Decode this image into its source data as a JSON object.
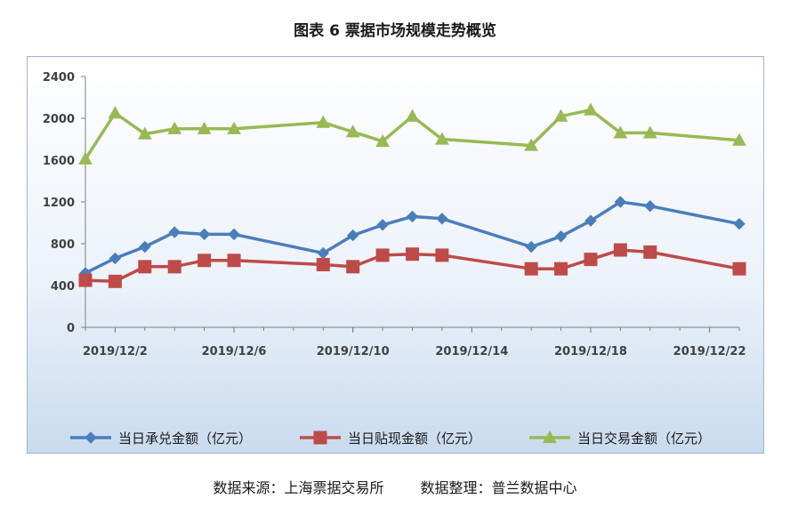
{
  "title": "图表 6 票据市场规模走势概览",
  "source_left": "数据来源：上海票据交易所",
  "source_right": "数据整理：普兰数据中心",
  "chart_data": {
    "type": "line",
    "title": "图表 6 票据市场规模走势概览",
    "x_tick_labels": [
      "2019/12/2",
      "2019/12/6",
      "2019/12/10",
      "2019/12/14",
      "2019/12/18",
      "2019/12/22"
    ],
    "x_tick_days": [
      2,
      6,
      10,
      14,
      18,
      22
    ],
    "x": [
      1,
      2,
      3,
      4,
      5,
      6,
      9,
      10,
      11,
      12,
      13,
      16,
      17,
      18,
      19,
      20,
      23
    ],
    "x_dates": [
      "2019/12/1",
      "2019/12/2",
      "2019/12/3",
      "2019/12/4",
      "2019/12/5",
      "2019/12/6",
      "2019/12/9",
      "2019/12/10",
      "2019/12/11",
      "2019/12/12",
      "2019/12/13",
      "2019/12/16",
      "2019/12/17",
      "2019/12/18",
      "2019/12/19",
      "2019/12/20",
      "2019/12/23"
    ],
    "xlim": [
      1,
      23
    ],
    "ylim": [
      0,
      2400
    ],
    "y_ticks": [
      0,
      400,
      800,
      1200,
      1600,
      2000,
      2400
    ],
    "series": [
      {
        "name": "当日承兑金额（亿元）",
        "color": "#4a7ebb",
        "marker": "diamond",
        "values": [
          520,
          660,
          770,
          910,
          890,
          890,
          710,
          880,
          980,
          1060,
          1040,
          770,
          870,
          1020,
          1200,
          1160,
          990
        ]
      },
      {
        "name": "当日贴现金额（亿元）",
        "color": "#be4b48",
        "marker": "square",
        "values": [
          450,
          440,
          580,
          580,
          640,
          640,
          600,
          580,
          690,
          700,
          690,
          560,
          560,
          650,
          740,
          720,
          560
        ]
      },
      {
        "name": "当日交易金额（亿元）",
        "color": "#98b954",
        "marker": "triangle",
        "values": [
          1610,
          2050,
          1850,
          1900,
          1900,
          1900,
          1960,
          1870,
          1780,
          2020,
          1800,
          1740,
          2020,
          2080,
          1860,
          1860,
          1790
        ]
      }
    ],
    "grid": false,
    "legend_position": "bottom"
  }
}
